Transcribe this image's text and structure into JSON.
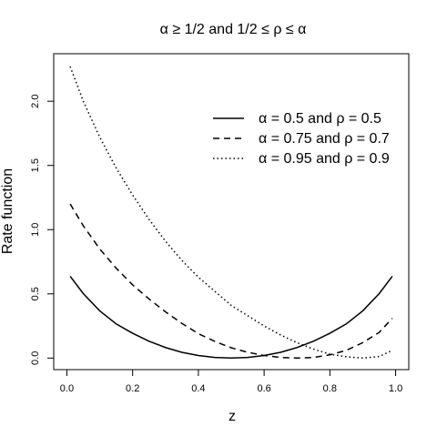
{
  "chart_data": {
    "type": "line",
    "title": "α ≥ 1/2 and 1/2 ≤ ρ ≤ α",
    "xlabel": "z",
    "ylabel": "Rate function",
    "xlim": [
      -0.04,
      1.04
    ],
    "ylim": [
      -0.09,
      2.37
    ],
    "x_ticks": [
      0.0,
      0.2,
      0.4,
      0.6,
      0.8,
      1.0
    ],
    "x_tick_labels": [
      "0.0",
      "0.2",
      "0.4",
      "0.6",
      "0.8",
      "1.0"
    ],
    "y_ticks": [
      0.0,
      0.5,
      1.0,
      1.5,
      2.0
    ],
    "y_tick_labels": [
      "0.0",
      "0.5",
      "1.0",
      "1.5",
      "2.0"
    ],
    "grid": false,
    "legend_position": "top-right",
    "series": [
      {
        "name": "α = 0.5 and ρ = 0.5",
        "line_style": "solid",
        "x": [
          0.01,
          0.05,
          0.1,
          0.15,
          0.2,
          0.25,
          0.3,
          0.35,
          0.4,
          0.45,
          0.5,
          0.55,
          0.6,
          0.65,
          0.7,
          0.75,
          0.8,
          0.85,
          0.9,
          0.95,
          0.99
        ],
        "y": [
          0.637,
          0.502,
          0.368,
          0.266,
          0.193,
          0.131,
          0.082,
          0.045,
          0.02,
          0.005,
          0.0,
          0.005,
          0.02,
          0.045,
          0.082,
          0.131,
          0.193,
          0.266,
          0.368,
          0.502,
          0.637
        ]
      },
      {
        "name": "α = 0.75 and ρ = 0.7",
        "line_style": "dashed",
        "x": [
          0.01,
          0.05,
          0.1,
          0.15,
          0.2,
          0.25,
          0.3,
          0.35,
          0.4,
          0.45,
          0.5,
          0.55,
          0.6,
          0.65,
          0.7,
          0.75,
          0.8,
          0.85,
          0.9,
          0.95,
          0.99
        ],
        "y": [
          1.2,
          1.03,
          0.85,
          0.7,
          0.57,
          0.46,
          0.36,
          0.27,
          0.19,
          0.13,
          0.08,
          0.045,
          0.02,
          0.005,
          0.0,
          0.005,
          0.025,
          0.06,
          0.12,
          0.2,
          0.31
        ]
      },
      {
        "name": "α = 0.95 and ρ = 0.9",
        "line_style": "dotted",
        "x": [
          0.01,
          0.05,
          0.1,
          0.15,
          0.2,
          0.25,
          0.3,
          0.35,
          0.4,
          0.45,
          0.5,
          0.55,
          0.6,
          0.65,
          0.7,
          0.75,
          0.8,
          0.85,
          0.9,
          0.95,
          0.99
        ],
        "y": [
          2.27,
          2.0,
          1.72,
          1.48,
          1.27,
          1.08,
          0.91,
          0.76,
          0.63,
          0.52,
          0.41,
          0.33,
          0.25,
          0.18,
          0.12,
          0.07,
          0.03,
          0.01,
          0.0,
          0.012,
          0.06
        ]
      }
    ]
  }
}
